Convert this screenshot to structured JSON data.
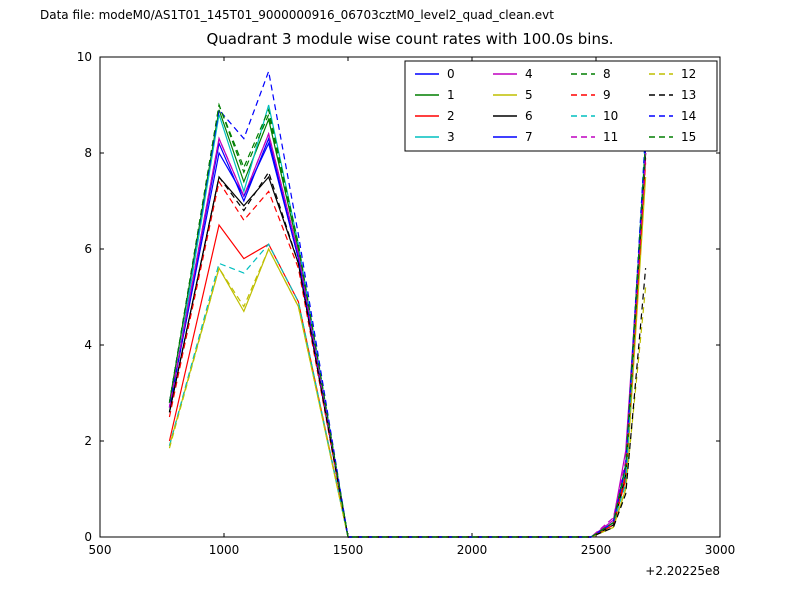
{
  "header": {
    "data_file_label": "Data file: modeM0/AS1T01_145T01_9000000916_06703cztM0_level2_quad_clean.evt"
  },
  "chart_data": {
    "type": "line",
    "title": "Quadrant 3 module wise count rates with 100.0s bins.",
    "xlabel": "",
    "ylabel": "",
    "xlim": [
      500,
      3000
    ],
    "ylim": [
      0,
      10
    ],
    "xticks": [
      500,
      1000,
      1500,
      2000,
      2500,
      3000
    ],
    "yticks": [
      0,
      2,
      4,
      6,
      8,
      10
    ],
    "x_offset_text": "+2.20225e8",
    "legend_position": "upper right",
    "grid": false,
    "x": [
      780,
      980,
      1080,
      1180,
      1300,
      1500,
      2480,
      2570,
      2620,
      2700
    ],
    "series": [
      {
        "name": "0",
        "color": "#0000ff",
        "dash": false,
        "values": [
          2.7,
          8.2,
          7.0,
          8.3,
          5.8,
          0,
          0,
          0.3,
          1.5,
          8.2
        ]
      },
      {
        "name": "1",
        "color": "#007f00",
        "dash": false,
        "values": [
          2.8,
          8.9,
          7.4,
          8.7,
          6.0,
          0,
          0,
          0.3,
          1.5,
          8.1
        ]
      },
      {
        "name": "2",
        "color": "#ff0000",
        "dash": false,
        "values": [
          2.0,
          6.5,
          5.8,
          6.1,
          4.9,
          0,
          0,
          0.25,
          1.2,
          7.9
        ]
      },
      {
        "name": "3",
        "color": "#00bfbf",
        "dash": false,
        "values": [
          2.6,
          8.8,
          7.2,
          9.0,
          6.1,
          0,
          0,
          0.3,
          1.4,
          8.3
        ]
      },
      {
        "name": "4",
        "color": "#bf00bf",
        "dash": false,
        "values": [
          2.7,
          8.3,
          7.1,
          8.4,
          5.9,
          0,
          0,
          0.35,
          1.8,
          8.0
        ]
      },
      {
        "name": "5",
        "color": "#bfbf00",
        "dash": false,
        "values": [
          1.9,
          5.6,
          4.7,
          6.0,
          4.8,
          0,
          0,
          0.2,
          1.0,
          7.5
        ]
      },
      {
        "name": "6",
        "color": "#000000",
        "dash": false,
        "values": [
          2.6,
          7.5,
          6.9,
          7.5,
          5.7,
          0,
          0,
          0.25,
          1.3,
          8.0
        ]
      },
      {
        "name": "7",
        "color": "#0000ff",
        "dash": false,
        "values": [
          2.7,
          8.0,
          7.1,
          8.2,
          5.8,
          0,
          0,
          0.3,
          1.5,
          8.2
        ]
      },
      {
        "name": "8",
        "color": "#007f00",
        "dash": true,
        "values": [
          2.8,
          9.0,
          7.6,
          8.8,
          6.0,
          0,
          0,
          0.3,
          1.5,
          8.2
        ]
      },
      {
        "name": "9",
        "color": "#ff0000",
        "dash": true,
        "values": [
          2.5,
          7.4,
          6.6,
          7.2,
          5.6,
          0,
          0,
          0.25,
          1.3,
          7.8
        ]
      },
      {
        "name": "10",
        "color": "#00bfbf",
        "dash": true,
        "values": [
          1.9,
          5.7,
          5.5,
          6.1,
          4.9,
          0,
          0,
          0.3,
          1.1,
          8.5
        ]
      },
      {
        "name": "11",
        "color": "#bf00bf",
        "dash": true,
        "values": [
          2.7,
          8.3,
          7.1,
          8.4,
          5.9,
          0,
          0,
          0.4,
          1.6,
          8.0
        ]
      },
      {
        "name": "12",
        "color": "#bfbf00",
        "dash": true,
        "values": [
          1.85,
          5.6,
          4.8,
          6.0,
          4.8,
          0,
          0,
          0.2,
          1.0,
          5.2
        ]
      },
      {
        "name": "13",
        "color": "#000000",
        "dash": true,
        "values": [
          2.6,
          7.5,
          6.8,
          7.6,
          5.7,
          0,
          0,
          0.2,
          0.9,
          5.6
        ]
      },
      {
        "name": "14",
        "color": "#0000ff",
        "dash": true,
        "values": [
          2.8,
          8.9,
          8.3,
          9.7,
          6.3,
          0,
          0,
          0.3,
          1.5,
          8.4
        ]
      },
      {
        "name": "15",
        "color": "#007f00",
        "dash": true,
        "values": [
          2.8,
          9.0,
          7.7,
          8.9,
          6.1,
          0,
          0,
          0.3,
          1.5,
          8.2
        ]
      }
    ]
  }
}
